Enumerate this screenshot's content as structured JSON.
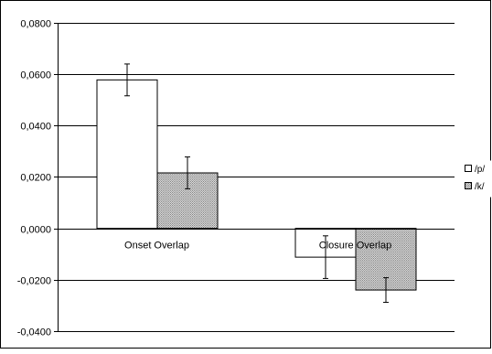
{
  "chart_data": {
    "type": "bar",
    "categories": [
      "Onset Overlap",
      "Closure Overlap"
    ],
    "series": [
      {
        "name": "/p/",
        "values": [
          0.0578,
          -0.0112
        ],
        "errors": [
          0.0062,
          0.0083
        ],
        "color": "#ffffff"
      },
      {
        "name": "/k/",
        "values": [
          0.0216,
          -0.024
        ],
        "errors": [
          0.0062,
          0.0048
        ],
        "color": "#c0c0c0"
      }
    ],
    "yticks": [
      "0,0800",
      "0,0600",
      "0,0400",
      "0,0200",
      "0,0000",
      "-0,0200",
      "-0,0400"
    ],
    "ylim": [
      -0.04,
      0.08
    ],
    "grid": true,
    "legend": "right",
    "title": "",
    "xlabel": "",
    "ylabel": ""
  }
}
